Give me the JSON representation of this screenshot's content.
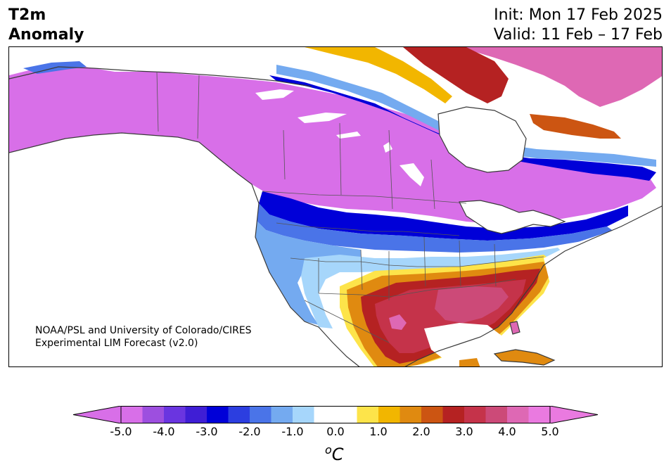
{
  "header": {
    "variable": "T2m",
    "kind": "Anomaly",
    "init": "Init: Mon 17 Feb 2025",
    "valid": "Valid: 11 Feb – 17 Feb"
  },
  "credit": {
    "line1": "NOAA/PSL and University of Colorado/CIRES",
    "line2": "Experimental LIM Forecast (v2.0)"
  },
  "colorbar": {
    "units_symbol": "o",
    "units_letter": "C",
    "ticks": [
      "-5.0",
      "-4.0",
      "-3.0",
      "-2.0",
      "-1.0",
      "0.0",
      "1.0",
      "2.0",
      "3.0",
      "4.0",
      "5.0"
    ],
    "colors": [
      "#d86fe8",
      "#9d4fdf",
      "#6a35e0",
      "#3f1ed5",
      "#0000d8",
      "#2c3ee0",
      "#4a74e8",
      "#74aaf0",
      "#a6d6fb",
      "#ffffff",
      "#ffffff",
      "#fde44a",
      "#f2b600",
      "#e08a10",
      "#cc5512",
      "#b52222",
      "#c5334a",
      "#cc4a78",
      "#de68b4",
      "#ea7ae0"
    ],
    "under_color": "#d86fe8",
    "over_color": "#ea7ae0"
  },
  "map": {
    "region": "North America",
    "anomaly_colors": {
      "very_cold": "#d86fe8",
      "cold_purple": "#9d4fdf",
      "cold_blue": "#0000d8",
      "cool": "#74aaf0",
      "slightly_cool": "#a6d6fb",
      "neutral": "#ffffff",
      "slightly_warm": "#fde44a",
      "warm": "#e08a10",
      "hot": "#b52222",
      "very_hot": "#c5334a",
      "extreme_hot": "#de68b4"
    }
  }
}
